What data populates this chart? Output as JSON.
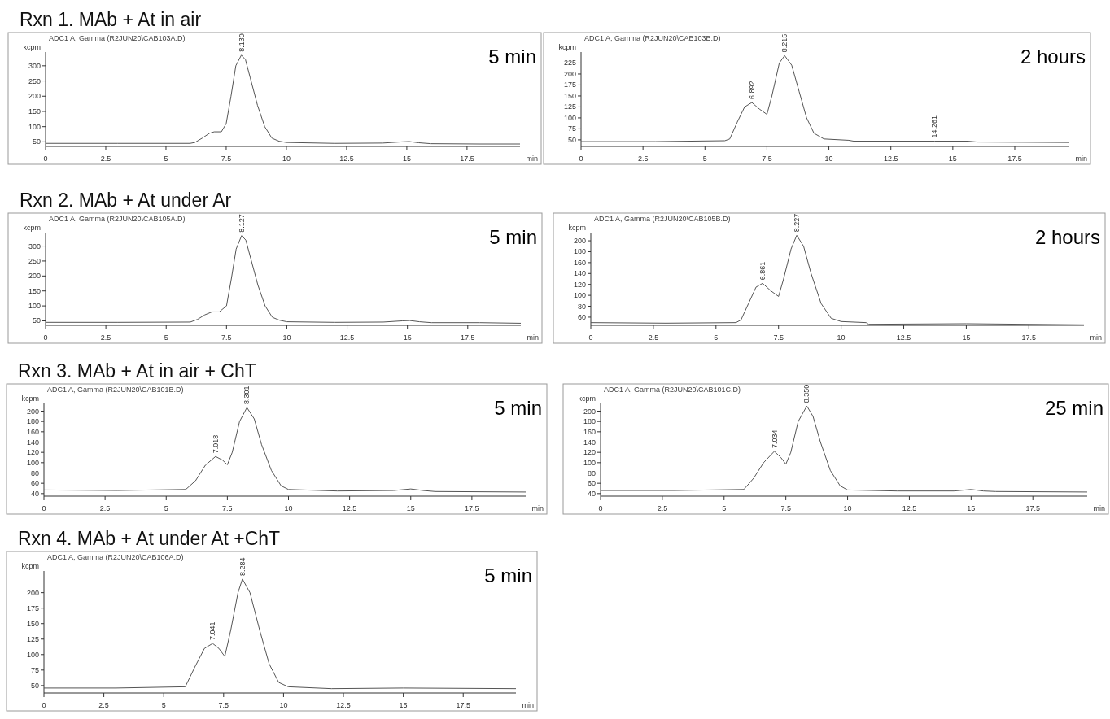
{
  "chart_data": [
    {
      "type": "line",
      "title": "Rxn 1. MAb + At in air",
      "subtitle": "ADC1 A, Gamma (R2JUN20\\CAB103A.D)",
      "ylabel": "kcpm",
      "xlabel": "min",
      "xlim": [
        0,
        19.7
      ],
      "xticks": [
        0,
        2.5,
        5,
        7.5,
        10,
        12.5,
        15,
        17.5
      ],
      "ylim": [
        35,
        345
      ],
      "yticks": [
        50,
        100,
        150,
        200,
        250,
        300
      ],
      "series": [
        {
          "color": "#555555",
          "x": [
            0,
            3,
            6,
            6.2,
            6.5,
            6.8,
            7.0,
            7.3,
            7.5,
            7.7,
            7.9,
            8.13,
            8.3,
            8.5,
            8.8,
            9.1,
            9.4,
            9.7,
            10,
            12,
            14,
            14.8,
            15.1,
            15.5,
            16,
            18,
            19.7
          ],
          "values": [
            45,
            45,
            45,
            48,
            62,
            78,
            83,
            83,
            110,
            200,
            300,
            335,
            320,
            260,
            170,
            100,
            62,
            52,
            48,
            45,
            46,
            50,
            51,
            47,
            44,
            43,
            43
          ]
        }
      ],
      "annotations": [
        "5 min",
        {
          "text": "8.130",
          "x": 8.13,
          "y": 335
        }
      ]
    },
    {
      "type": "line",
      "subtitle": "ADC1 A, Gamma (R2JUN20\\CAB103B.D)",
      "ylabel": "kcpm",
      "xlabel": "min",
      "xlim": [
        0,
        19.7
      ],
      "xticks": [
        0,
        2.5,
        5,
        7.5,
        10,
        12.5,
        15,
        17.5
      ],
      "ylim": [
        35,
        250
      ],
      "yticks": [
        50,
        75,
        100,
        125,
        150,
        175,
        200,
        225
      ],
      "series": [
        {
          "color": "#555555",
          "x": [
            0,
            3,
            5.8,
            6.0,
            6.3,
            6.6,
            6.892,
            7.2,
            7.5,
            7.7,
            8.0,
            8.215,
            8.5,
            8.8,
            9.1,
            9.4,
            9.8,
            10.8,
            11,
            14.261,
            15.6,
            16,
            19.7
          ],
          "values": [
            46,
            46,
            48,
            52,
            90,
            125,
            135,
            120,
            108,
            150,
            225,
            242,
            220,
            160,
            100,
            65,
            52,
            49,
            47,
            47,
            47,
            45,
            44
          ]
        }
      ],
      "annotations": [
        "2 hours",
        {
          "text": "6.892",
          "x": 6.892,
          "y": 135
        },
        {
          "text": "8.215",
          "x": 8.215,
          "y": 242
        },
        {
          "text": "14.261",
          "x": 14.261,
          "y": 47
        }
      ]
    },
    {
      "type": "line",
      "title": "Rxn 2. MAb + At under Ar",
      "subtitle": "ADC1 A, Gamma (R2JUN20\\CAB105A.D)",
      "ylabel": "kcpm",
      "xlabel": "min",
      "xlim": [
        0,
        19.7
      ],
      "xticks": [
        0,
        2.5,
        5,
        7.5,
        10,
        12.5,
        15,
        17.5
      ],
      "ylim": [
        35,
        345
      ],
      "yticks": [
        50,
        100,
        150,
        200,
        250,
        300
      ],
      "series": [
        {
          "color": "#555555",
          "x": [
            0,
            3,
            6,
            6.3,
            6.6,
            6.9,
            7.2,
            7.5,
            7.7,
            7.9,
            8.127,
            8.3,
            8.5,
            8.8,
            9.1,
            9.4,
            9.7,
            10,
            12,
            14,
            14.8,
            15.1,
            15.5,
            16,
            18,
            19.7
          ],
          "values": [
            45,
            45,
            46,
            55,
            70,
            80,
            80,
            100,
            190,
            290,
            335,
            320,
            260,
            170,
            100,
            62,
            52,
            47,
            45,
            46,
            50,
            51,
            47,
            44,
            44,
            42
          ]
        }
      ],
      "annotations": [
        "5 min",
        {
          "text": "8.127",
          "x": 8.127,
          "y": 335
        }
      ]
    },
    {
      "type": "line",
      "subtitle": "ADC1 A, Gamma (R2JUN20\\CAB105B.D)",
      "ylabel": "kcpm",
      "xlabel": "min",
      "xlim": [
        0,
        19.7
      ],
      "xticks": [
        0,
        2.5,
        5,
        7.5,
        10,
        12.5,
        15,
        17.5
      ],
      "ylim": [
        45,
        215
      ],
      "yticks": [
        60,
        80,
        100,
        120,
        140,
        160,
        180,
        200
      ],
      "series": [
        {
          "color": "#555555",
          "x": [
            0,
            3,
            5.8,
            6.0,
            6.3,
            6.6,
            6.861,
            7.2,
            7.5,
            7.7,
            8.0,
            8.227,
            8.5,
            8.8,
            9.2,
            9.6,
            10,
            11,
            11.1,
            15,
            19.7
          ],
          "values": [
            50,
            49,
            50,
            55,
            85,
            115,
            122,
            108,
            98,
            130,
            185,
            210,
            190,
            140,
            85,
            58,
            52,
            50,
            47,
            48,
            46
          ]
        }
      ],
      "annotations": [
        "2 hours",
        {
          "text": "6.861",
          "x": 6.861,
          "y": 122
        },
        {
          "text": "8.227",
          "x": 8.227,
          "y": 210
        }
      ]
    },
    {
      "type": "line",
      "title": "Rxn 3. MAb + At in air + ChT",
      "subtitle": "ADC1 A, Gamma (R2JUN20\\CAB101B.D)",
      "ylabel": "kcpm",
      "xlabel": "min",
      "xlim": [
        0,
        19.7
      ],
      "xticks": [
        0,
        2.5,
        5,
        7.5,
        10,
        12.5,
        15,
        17.5
      ],
      "ylim": [
        35,
        215
      ],
      "yticks": [
        40,
        60,
        80,
        100,
        120,
        140,
        160,
        180,
        200
      ],
      "series": [
        {
          "color": "#555555",
          "x": [
            0,
            3,
            5.8,
            6.2,
            6.6,
            7.018,
            7.3,
            7.5,
            7.7,
            8.0,
            8.301,
            8.6,
            8.9,
            9.3,
            9.7,
            10,
            12,
            14.3,
            15,
            15.5,
            16,
            19.7
          ],
          "values": [
            47,
            46,
            48,
            65,
            95,
            112,
            105,
            96,
            120,
            180,
            207,
            185,
            135,
            85,
            55,
            48,
            45,
            46,
            49,
            46,
            44,
            43
          ]
        }
      ],
      "annotations": [
        "5 min",
        {
          "text": "7.018",
          "x": 7.018,
          "y": 112
        },
        {
          "text": "8.301",
          "x": 8.301,
          "y": 207
        }
      ]
    },
    {
      "type": "line",
      "subtitle": "ADC1 A, Gamma (R2JUN20\\CAB101C.D)",
      "ylabel": "kcpm",
      "xlabel": "min",
      "xlim": [
        0,
        19.7
      ],
      "xticks": [
        0,
        2.5,
        5,
        7.5,
        10,
        12.5,
        15,
        17.5
      ],
      "ylim": [
        35,
        215
      ],
      "yticks": [
        40,
        60,
        80,
        100,
        120,
        140,
        160,
        180,
        200
      ],
      "series": [
        {
          "color": "#555555",
          "x": [
            0,
            3,
            5.8,
            6.2,
            6.6,
            7.034,
            7.3,
            7.5,
            7.7,
            8.0,
            8.35,
            8.6,
            8.9,
            9.3,
            9.7,
            10,
            12,
            14.3,
            15,
            15.5,
            16,
            19.7
          ],
          "values": [
            46,
            46,
            48,
            70,
            100,
            122,
            110,
            97,
            120,
            180,
            210,
            190,
            140,
            85,
            55,
            47,
            45,
            45,
            48,
            45,
            44,
            43
          ]
        }
      ],
      "annotations": [
        "25 min",
        {
          "text": "7.034",
          "x": 7.034,
          "y": 122
        },
        {
          "text": "8.350",
          "x": 8.35,
          "y": 210
        }
      ]
    },
    {
      "type": "line",
      "title": "Rxn 4. MAb + At under At +ChT",
      "subtitle": "ADC1 A, Gamma (R2JUN20\\CAB106A.D)",
      "ylabel": "kcpm",
      "xlabel": "min",
      "xlim": [
        0,
        19.7
      ],
      "xticks": [
        0,
        2.5,
        5,
        7.5,
        10,
        12.5,
        15,
        17.5
      ],
      "ylim": [
        38,
        235
      ],
      "yticks": [
        50,
        75,
        100,
        125,
        150,
        175,
        200
      ],
      "series": [
        {
          "color": "#555555",
          "x": [
            0,
            3,
            5.9,
            6.3,
            6.7,
            7.041,
            7.3,
            7.55,
            7.8,
            8.1,
            8.284,
            8.6,
            9.0,
            9.4,
            9.8,
            10.2,
            12,
            15,
            19.7
          ],
          "values": [
            46,
            46,
            48,
            80,
            110,
            118,
            110,
            97,
            140,
            200,
            222,
            200,
            140,
            85,
            55,
            48,
            45,
            46,
            45
          ]
        }
      ],
      "annotations": [
        "5 min",
        {
          "text": "7.041",
          "x": 7.041,
          "y": 118
        },
        {
          "text": "8.284",
          "x": 8.284,
          "y": 222
        }
      ]
    }
  ]
}
